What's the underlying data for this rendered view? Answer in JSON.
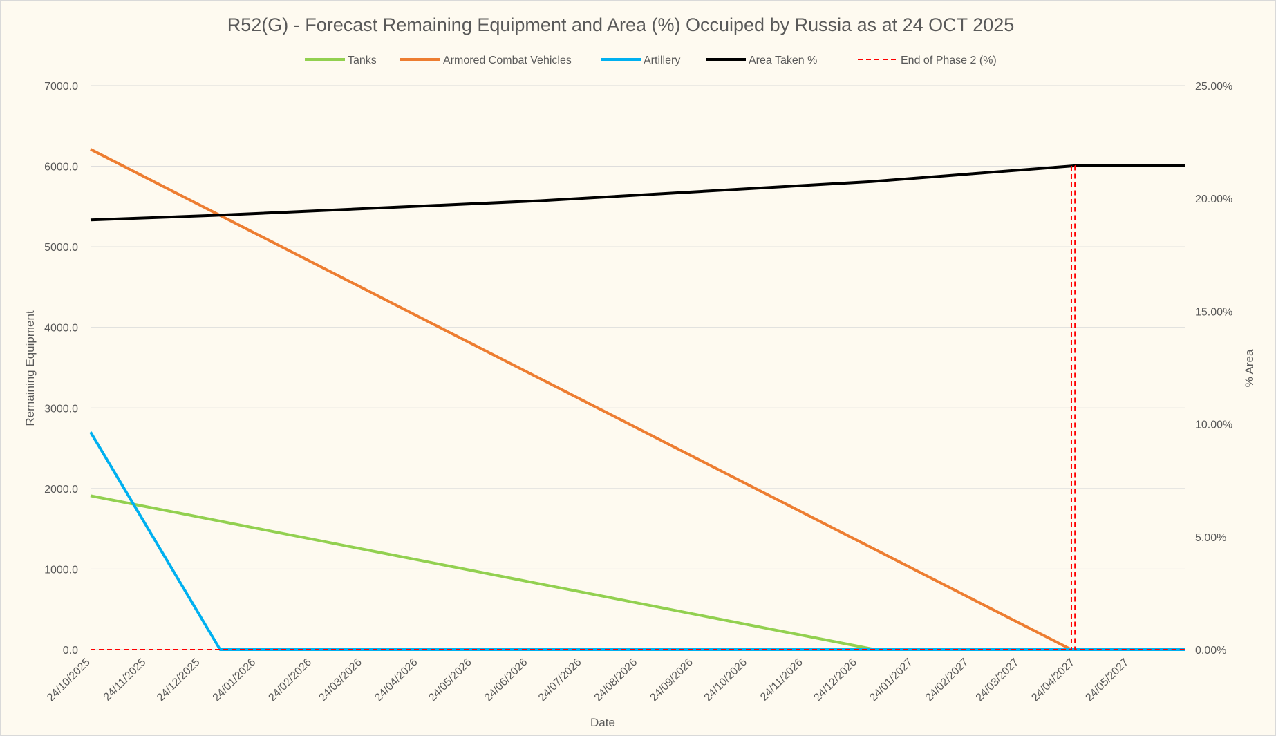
{
  "chart_data": {
    "type": "line",
    "title": "R52(G) - Forecast Remaining Equipment and Area (%) Occuiped by Russia as at 24 OCT 2025",
    "xlabel": "Date",
    "ylabel": "Remaining Equipment",
    "y2label": "% Area",
    "x_start": "24/10/2025",
    "x_end": "24/06/2027",
    "x_tick_labels": [
      "24/10/2025",
      "24/11/2025",
      "24/12/2025",
      "24/01/2026",
      "24/02/2026",
      "24/03/2026",
      "24/04/2026",
      "24/05/2026",
      "24/06/2026",
      "24/07/2026",
      "24/08/2026",
      "24/09/2026",
      "24/10/2026",
      "24/11/2026",
      "24/12/2026",
      "24/01/2027",
      "24/02/2027",
      "24/03/2027",
      "24/04/2027",
      "24/05/2027"
    ],
    "y_tick_labels": [
      "0.0",
      "1000.0",
      "2000.0",
      "3000.0",
      "4000.0",
      "5000.0",
      "6000.0",
      "7000.0"
    ],
    "y2_tick_labels": [
      "0.00%",
      "5.00%",
      "10.00%",
      "15.00%",
      "20.00%",
      "25.00%"
    ],
    "ylim": [
      0,
      7000
    ],
    "y2lim": [
      0,
      25
    ],
    "grid": true,
    "legend_position": "top",
    "series": [
      {
        "name": "Tanks",
        "axis": "left",
        "color": "#92d050",
        "dash": false,
        "points": [
          [
            "24/10/2025",
            1910
          ],
          [
            "03/01/2027",
            0
          ],
          [
            "24/06/2027",
            0
          ]
        ]
      },
      {
        "name": "Armored Combat Vehicles",
        "axis": "left",
        "color": "#ed7d31",
        "dash": false,
        "points": [
          [
            "24/10/2025",
            6210
          ],
          [
            "22/04/2027",
            0
          ],
          [
            "24/06/2027",
            0
          ]
        ]
      },
      {
        "name": "Artillery",
        "axis": "left",
        "color": "#00b0f0",
        "dash": false,
        "points": [
          [
            "24/10/2025",
            2700
          ],
          [
            "04/01/2026",
            0
          ],
          [
            "24/06/2027",
            0
          ]
        ]
      },
      {
        "name": "Area Taken %",
        "axis": "right",
        "color": "#000000",
        "dash": false,
        "points": [
          [
            "24/10/2025",
            19.05
          ],
          [
            "01/01/2026",
            19.25
          ],
          [
            "01/07/2026",
            19.9
          ],
          [
            "01/01/2027",
            20.75
          ],
          [
            "24/04/2027",
            21.45
          ],
          [
            "24/06/2027",
            21.45
          ]
        ]
      },
      {
        "name": "End of Phase 2 (%)",
        "axis": "right",
        "color": "#ff0000",
        "dash": true,
        "points": [
          [
            "24/10/2025",
            0
          ],
          [
            "22/04/2027",
            0
          ],
          [
            "22/04/2027",
            21.45
          ],
          [
            "24/04/2027",
            21.45
          ],
          [
            "24/04/2027",
            0
          ],
          [
            "24/06/2027",
            0
          ]
        ]
      }
    ]
  }
}
